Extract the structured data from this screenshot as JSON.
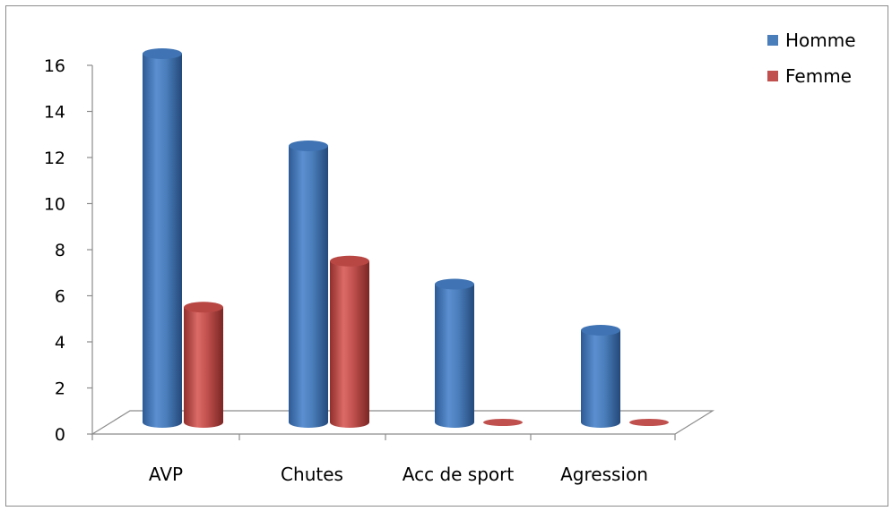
{
  "chart_data": {
    "type": "bar",
    "style": "3d-cylinder",
    "categories": [
      "AVP",
      "Chutes",
      "Acc de sport",
      "Agression"
    ],
    "series": [
      {
        "name": "Homme",
        "values": [
          16,
          12,
          6,
          4
        ],
        "color": "#4a7ebb"
      },
      {
        "name": "Femme",
        "values": [
          5,
          7,
          0,
          0
        ],
        "color": "#c0504d"
      }
    ],
    "y_ticks": [
      "0",
      "2",
      "4",
      "6",
      "8",
      "10",
      "12",
      "14",
      "16"
    ],
    "ylim": [
      0,
      16
    ],
    "legend_position": "top-right",
    "grid": false
  }
}
